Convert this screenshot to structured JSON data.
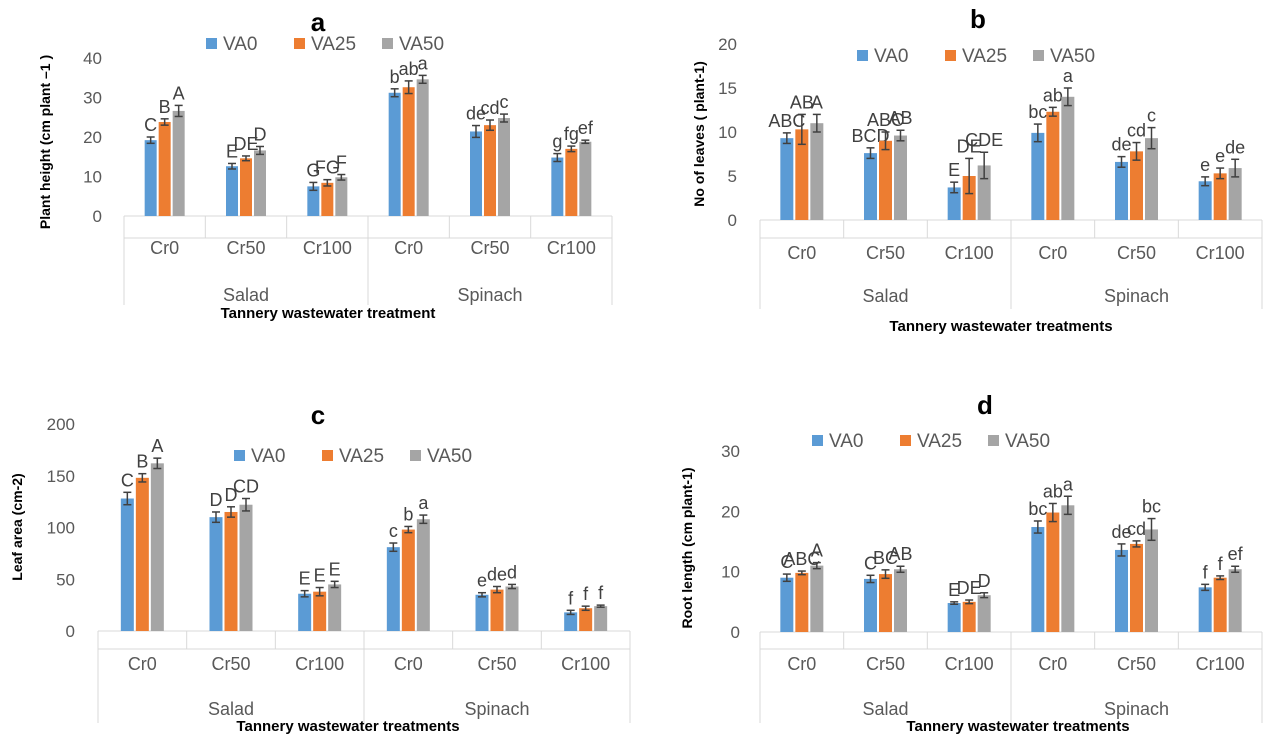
{
  "colors": {
    "VA0": "#5b9bd5",
    "VA25": "#ed7d31",
    "VA50": "#a5a5a5"
  },
  "chart_data": [
    {
      "type": "bar",
      "title": "a",
      "ylabel": "Plant height (cm plant –1 )",
      "xlabel": "Tannery wastewater treatment",
      "ylim": [
        0,
        40
      ],
      "yticks": [
        0,
        10,
        20,
        30,
        40
      ],
      "groups": [
        "Salad",
        "Spinach"
      ],
      "categories": [
        "Cr0",
        "Cr50",
        "Cr100",
        "Cr0",
        "Cr50",
        "Cr100"
      ],
      "series": [
        {
          "name": "VA0",
          "values": [
            19.2,
            12.6,
            7.5,
            31.2,
            21.4,
            14.8
          ],
          "errors": [
            0.8,
            0.7,
            1.0,
            1.0,
            1.5,
            1.0
          ],
          "labels": [
            "C",
            "E",
            "G",
            "b",
            "de",
            "g"
          ]
        },
        {
          "name": "VA25",
          "values": [
            23.8,
            14.6,
            8.4,
            32.6,
            23.0,
            17.0
          ],
          "errors": [
            0.8,
            0.6,
            0.8,
            1.6,
            1.3,
            0.7
          ],
          "labels": [
            "B",
            "DE",
            "FG",
            "ab",
            "cd",
            "fg"
          ]
        },
        {
          "name": "VA50",
          "values": [
            26.6,
            16.6,
            9.8,
            34.6,
            24.8,
            18.8
          ],
          "errors": [
            1.4,
            1.0,
            0.7,
            1.0,
            1.0,
            0.4
          ],
          "labels": [
            "A",
            "D",
            "F",
            "a",
            "c",
            "ef"
          ]
        }
      ]
    },
    {
      "type": "bar",
      "title": "b",
      "ylabel": "No of leaves ( plant-1)",
      "xlabel": "Tannery wastewater treatments",
      "ylim": [
        0,
        20
      ],
      "yticks": [
        0,
        5,
        10,
        15,
        20
      ],
      "groups": [
        "Salad",
        "Spinach"
      ],
      "categories": [
        "Cr0",
        "Cr50",
        "Cr100",
        "Cr0",
        "Cr50",
        "Cr100"
      ],
      "series": [
        {
          "name": "VA0",
          "values": [
            9.3,
            7.6,
            3.7,
            9.9,
            6.6,
            4.4
          ],
          "errors": [
            0.6,
            0.6,
            0.6,
            1.0,
            0.6,
            0.5
          ],
          "labels": [
            "ABC",
            "BCD",
            "E",
            "bc",
            "de",
            "e"
          ]
        },
        {
          "name": "VA25",
          "values": [
            10.3,
            9.0,
            5.0,
            12.3,
            7.8,
            5.3
          ],
          "errors": [
            1.7,
            1.0,
            2.0,
            0.5,
            1.0,
            0.6
          ],
          "labels": [
            "AB",
            "ABC",
            "DE",
            "ab",
            "cd",
            "e"
          ]
        },
        {
          "name": "VA50",
          "values": [
            11.0,
            9.6,
            6.2,
            14.0,
            9.3,
            5.9
          ],
          "errors": [
            1.0,
            0.6,
            1.5,
            1.0,
            1.2,
            1.0
          ],
          "labels": [
            "A",
            "AB",
            "CDE",
            "a",
            "c",
            "de"
          ]
        }
      ]
    },
    {
      "type": "bar",
      "title": "c",
      "ylabel": "Leaf area (cm-2)",
      "xlabel": "Tannery wastewater treatments",
      "ylim": [
        0,
        200
      ],
      "yticks": [
        0,
        50,
        100,
        150,
        200
      ],
      "groups": [
        "Salad",
        "Spinach"
      ],
      "categories": [
        "Cr0",
        "Cr50",
        "Cr100",
        "Cr0",
        "Cr50",
        "Cr100"
      ],
      "series": [
        {
          "name": "VA0",
          "values": [
            128,
            110,
            36,
            81,
            35,
            18
          ],
          "errors": [
            6,
            5,
            3,
            4,
            2,
            2
          ],
          "labels": [
            "C",
            "D",
            "E",
            "c",
            "e",
            "f"
          ]
        },
        {
          "name": "VA25",
          "values": [
            148,
            115,
            38,
            98,
            40,
            22
          ],
          "errors": [
            4,
            5,
            4,
            3,
            3,
            2
          ],
          "labels": [
            "B",
            "D",
            "E",
            "b",
            "de",
            "f"
          ]
        },
        {
          "name": "VA50",
          "values": [
            162,
            122,
            45,
            108,
            43,
            24
          ],
          "errors": [
            5,
            6,
            3,
            4,
            2,
            1
          ],
          "labels": [
            "A",
            "CD",
            "E",
            "a",
            "d",
            "f"
          ]
        }
      ]
    },
    {
      "type": "bar",
      "title": "d",
      "ylabel": "Root length (cm plant-1)",
      "xlabel": "Tannery wastewater treatments",
      "ylim": [
        0,
        30
      ],
      "yticks": [
        0,
        10,
        20,
        30
      ],
      "groups": [
        "Salad",
        "Spinach"
      ],
      "categories": [
        "Cr0",
        "Cr50",
        "Cr100",
        "Cr0",
        "Cr50",
        "Cr100"
      ],
      "series": [
        {
          "name": "VA0",
          "values": [
            9.0,
            8.8,
            4.8,
            17.4,
            13.6,
            7.4
          ],
          "errors": [
            0.6,
            0.6,
            0.2,
            1.0,
            1.0,
            0.5
          ],
          "labels": [
            "C",
            "C",
            "E",
            "bc",
            "de",
            "f"
          ]
        },
        {
          "name": "VA25",
          "values": [
            9.8,
            9.6,
            5.0,
            19.8,
            14.6,
            9.0
          ],
          "errors": [
            0.3,
            0.7,
            0.3,
            1.5,
            0.5,
            0.3
          ],
          "labels": [
            "ABC",
            "BC",
            "DE",
            "ab",
            "cd",
            "f"
          ]
        },
        {
          "name": "VA50",
          "values": [
            11.0,
            10.4,
            6.1,
            21.0,
            17.0,
            10.4
          ],
          "errors": [
            0.5,
            0.5,
            0.4,
            1.5,
            1.8,
            0.5
          ],
          "labels": [
            "A",
            "AB",
            "D",
            "a",
            "bc",
            "ef"
          ]
        }
      ]
    }
  ]
}
